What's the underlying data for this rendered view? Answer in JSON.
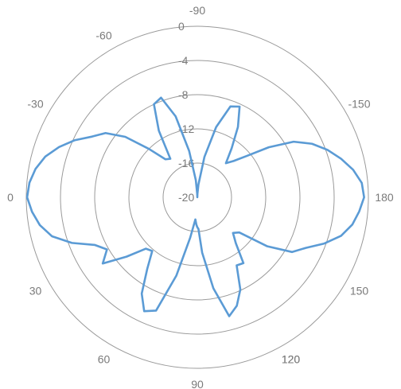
{
  "chart_data": {
    "type": "polar-line",
    "angle_labels": [
      {
        "angle": -90,
        "text": "-90"
      },
      {
        "angle": -60,
        "text": "-60"
      },
      {
        "angle": -30,
        "text": "-30"
      },
      {
        "angle": 0,
        "text": "0"
      },
      {
        "angle": 30,
        "text": "30"
      },
      {
        "angle": 60,
        "text": "60"
      },
      {
        "angle": 90,
        "text": "90"
      },
      {
        "angle": 120,
        "text": "120"
      },
      {
        "angle": 150,
        "text": "150"
      },
      {
        "angle": 180,
        "text": "180"
      },
      {
        "angle": -150,
        "text": "-150"
      },
      {
        "angle": 120.0001,
        "text": "120"
      }
    ],
    "radial_ticks": [
      0,
      -4,
      -8,
      -12,
      -16,
      -20
    ],
    "radial_tick_labels": [
      "0",
      "-4",
      "-8",
      "-12",
      "-16",
      "-20"
    ],
    "r_range": [
      -20,
      0
    ],
    "grid": true,
    "series": [
      {
        "color": "#5b9bd5",
        "angles": [
          -180,
          -175,
          -170,
          -165,
          -160,
          -155,
          -150,
          -145,
          -140,
          -135,
          -130,
          -125,
          -120,
          -115,
          -110,
          -105,
          -100,
          -95,
          -92,
          -90,
          -88,
          -85,
          -80,
          -75,
          -70,
          -65,
          -60,
          -55,
          -50,
          -45,
          -40,
          -35,
          -30,
          -25,
          -20,
          -15,
          -10,
          -5,
          0,
          5,
          10,
          15,
          20,
          25,
          30,
          35,
          40,
          45,
          50,
          55,
          60,
          65,
          70,
          75,
          80,
          85,
          88,
          90,
          92,
          95,
          100,
          105,
          110,
          115,
          120,
          125,
          130,
          135,
          140,
          145,
          150,
          155,
          160,
          165,
          170,
          175,
          180
        ],
        "values": [
          -0.5,
          -0.7,
          -1.5,
          -2.6,
          -3.8,
          -5.2,
          -7.0,
          -9.8,
          -12.5,
          -14.0,
          -14.8,
          -13.0,
          -10.5,
          -8.3,
          -8.7,
          -11.5,
          -15.2,
          -18.5,
          -19.6,
          -20.0,
          -19.6,
          -18.0,
          -14.5,
          -10.2,
          -7.6,
          -8.0,
          -11.0,
          -14.5,
          -14.2,
          -12.0,
          -9.0,
          -6.9,
          -5.8,
          -4.2,
          -2.8,
          -1.6,
          -0.8,
          -0.3,
          -0.1,
          -0.6,
          -1.3,
          -2.4,
          -4.4,
          -6.8,
          -7.8,
          -6.5,
          -9.2,
          -11.5,
          -11.8,
          -9.8,
          -7.0,
          -5.3,
          -5.9,
          -10.5,
          -15.2,
          -17.4,
          -16.8,
          -16.5,
          -16.3,
          -13.5,
          -9.2,
          -5.6,
          -6.5,
          -8.1,
          -10.8,
          -10.6,
          -13.0,
          -14.1,
          -13.6,
          -10.0,
          -7.2,
          -6.0,
          -4.2,
          -2.6,
          -1.6,
          -1.0,
          -0.5
        ]
      }
    ]
  }
}
